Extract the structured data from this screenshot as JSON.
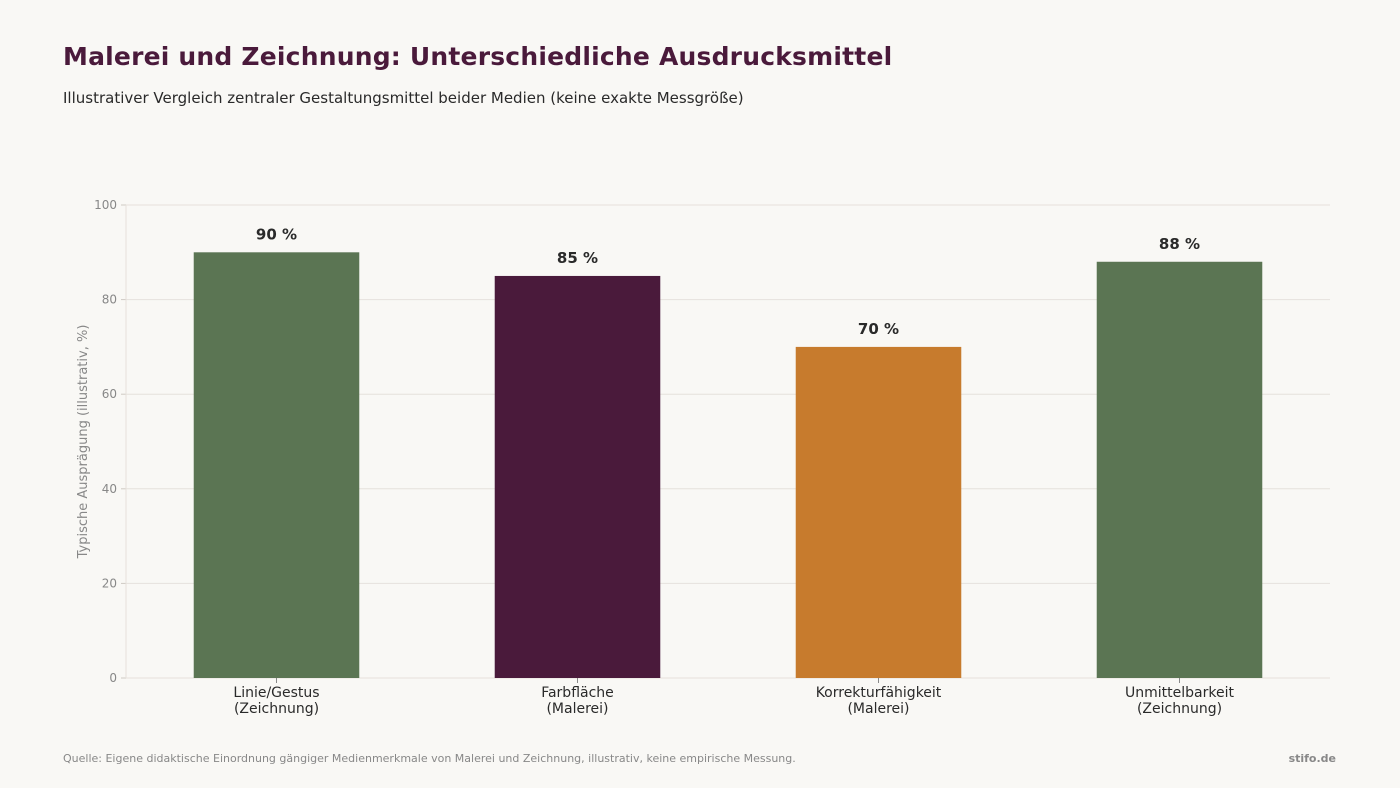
{
  "header": {
    "title": "Malerei und Zeichnung: Unterschiedliche Ausdrucksmittel",
    "subtitle": "Illustrativer Vergleich zentraler Gestaltungsmittel beider Medien (keine exakte Messgröße)"
  },
  "chart_data": {
    "type": "bar",
    "title": "Malerei und Zeichnung: Unterschiedliche Ausdrucksmittel",
    "subtitle": "Illustrativer Vergleich zentraler Gestaltungsmittel beider Medien (keine exakte Messgröße)",
    "categories": [
      [
        "Linie/Gestus",
        "(Zeichnung)"
      ],
      [
        "Farbfläche",
        "(Malerei)"
      ],
      [
        "Korrekturfähigkeit",
        "(Malerei)"
      ],
      [
        "Unmittelbarkeit",
        "(Zeichnung)"
      ]
    ],
    "values": [
      90,
      85,
      70,
      88
    ],
    "value_labels": [
      "90 %",
      "85 %",
      "70 %",
      "88 %"
    ],
    "colors": [
      "#5b7553",
      "#4a1a3b",
      "#c77b2d",
      "#5b7553"
    ],
    "xlabel": "",
    "ylabel": "Typische Ausprägung (illustrativ, %)",
    "ylim": [
      0,
      100
    ],
    "yticks": [
      0,
      20,
      40,
      60,
      80,
      100
    ],
    "grid": true,
    "legend": "none"
  },
  "footer": {
    "source": "Quelle: Eigene didaktische Einordnung gängiger Medienmerkmale von Malerei und Zeichnung, illustrativ, keine empirische Messung.",
    "brand": "stifo.de"
  }
}
